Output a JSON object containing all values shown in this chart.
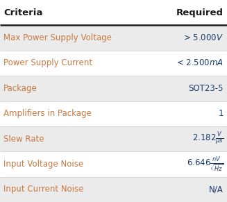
{
  "header": [
    "Criteria",
    "Required"
  ],
  "rows": [
    [
      "Max Power Supply Voltage",
      "> 5.000$V$"
    ],
    [
      "Power Supply Current",
      "< 2.500$mA$"
    ],
    [
      "Package",
      "SOT23-5"
    ],
    [
      "Amplifiers in Package",
      "1"
    ],
    [
      "Slew Rate",
      "2.182$\\frac{V}{\\mu s}$"
    ],
    [
      "Input Voltage Noise",
      "6.646$\\frac{nV}{\\sqrt{Hz}}$"
    ],
    [
      "Input Current Noise",
      "N/A"
    ]
  ],
  "header_bg": "#ffffff",
  "row_bg_odd": "#ebebeb",
  "row_bg_even": "#ffffff",
  "header_color": "#1a1a1a",
  "criteria_color": "#c87941",
  "required_color": "#1a3a6e",
  "header_line_color": "#1a1a1a",
  "separator_color": "#cccccc",
  "fig_bg": "#ffffff",
  "header_fontsize": 9.5,
  "row_fontsize": 8.5
}
